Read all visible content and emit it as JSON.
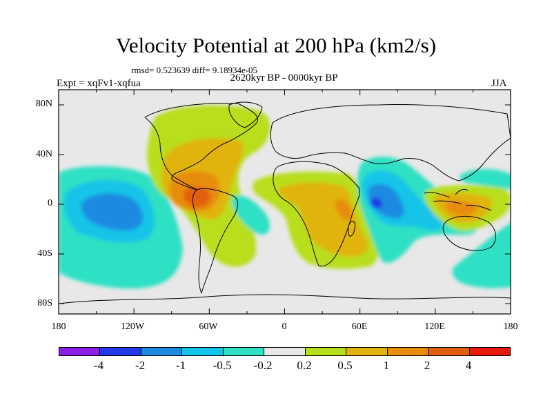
{
  "title": "Velocity Potential at 200 hPa (km2/s)",
  "stats": "rmsd= 0.523639 diff= 9.18934e-05",
  "experiment": "Expt = xqFv1-xqfua",
  "period": "2620kyr BP - 0000kyr BP",
  "season": "JJA",
  "axes": {
    "y_ticks": [
      "80N",
      "40N",
      "0",
      "40S",
      "80S"
    ],
    "x_ticks": [
      "180",
      "120W",
      "60W",
      "0",
      "60E",
      "120E",
      "180"
    ]
  },
  "colorbar": {
    "colors": [
      "#8c1fe6",
      "#1f3ae6",
      "#1a8ae0",
      "#12c4e8",
      "#2fe0c4",
      "#e8e8e8",
      "#b8de1a",
      "#e0b40c",
      "#e88c0c",
      "#e06010",
      "#e81a0c"
    ],
    "labels": [
      "-4",
      "-2",
      "-1",
      "-0.5",
      "-0.2",
      "0.2",
      "0.5",
      "1",
      "2",
      "4"
    ]
  },
  "map_data": {
    "field": "velocity potential difference",
    "units": "km2/s",
    "features": [
      {
        "name": "east-pacific-negative",
        "level": "-1",
        "lon": -140,
        "lat": -5
      },
      {
        "name": "americas-positive",
        "level": "2",
        "lon": -75,
        "lat": 5
      },
      {
        "name": "africa-positive",
        "level": "1",
        "lon": 30,
        "lat": -15
      },
      {
        "name": "indian-ocean-minimum",
        "level": "-4",
        "lon": 72,
        "lat": 0
      },
      {
        "name": "maritime-continent-positive",
        "level": "2",
        "lon": 125,
        "lat": -5
      }
    ]
  }
}
